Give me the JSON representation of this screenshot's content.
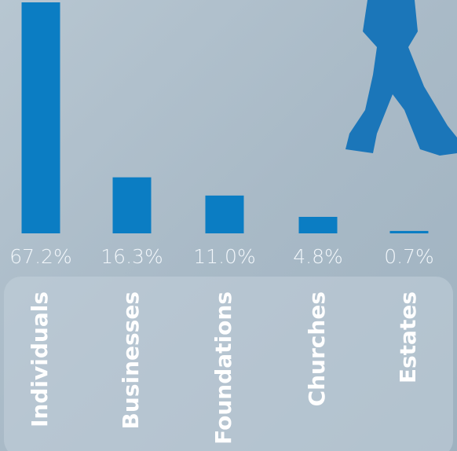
{
  "chart_data": {
    "type": "bar",
    "categories": [
      "Individuals",
      "Businesses",
      "Foundations",
      "Churches",
      "Estates"
    ],
    "values": [
      67.2,
      16.3,
      11.0,
      4.8,
      0.7
    ],
    "value_labels": [
      "67.2%",
      "16.3%",
      "11.0%",
      "4.8%",
      "0.7%"
    ],
    "color": "#0b7dc3"
  }
}
